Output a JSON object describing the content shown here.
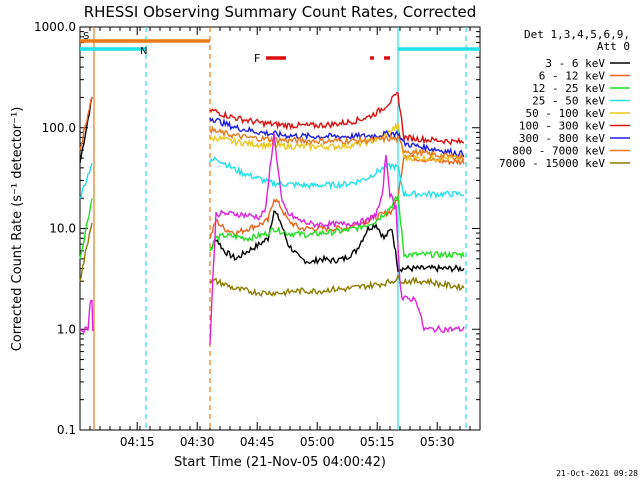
{
  "chart_data": {
    "type": "line",
    "title": "RHESSI Observing Summary Count Rates, Corrected",
    "xlabel": "Start Time (21-Nov-05 04:00:42)",
    "ylabel": "Corrected Count Rate (s⁻¹ detector⁻¹)",
    "y_scale": "log",
    "ylim": [
      0.1,
      1000.0
    ],
    "y_ticks": [
      "1000.0",
      "100.0",
      "10.0",
      "1.0",
      "0.1"
    ],
    "xlim_minutes": [
      0,
      100
    ],
    "x_ticks": [
      {
        "label": "04:15",
        "t": 14.3
      },
      {
        "label": "04:30",
        "t": 29.3
      },
      {
        "label": "04:45",
        "t": 44.3
      },
      {
        "label": "05:00",
        "t": 59.3
      },
      {
        "label": "05:15",
        "t": 74.3
      },
      {
        "label": "05:30",
        "t": 89.3
      }
    ],
    "grid": false,
    "legend_position": "right",
    "legend_header": [
      "Det 1,3,4,5,6,9,",
      "Att 0"
    ],
    "footer_date": "21-Oct-2021 09:28",
    "attenuator_marks": [
      {
        "label": "S",
        "t_start": 0,
        "t_end": 32.5,
        "color": "#e87a1e"
      },
      {
        "label": "N",
        "t_start": 0,
        "t_end": 16.5,
        "color": "#22e0e8"
      },
      {
        "label": "",
        "t_start": 79.5,
        "t_end": 100,
        "color": "#22e0e8"
      }
    ],
    "flare_flag": {
      "label": "F",
      "color": "#dd1010",
      "segments": [
        [
          46.5,
          51.5
        ],
        [
          72.5,
          73.5
        ],
        [
          76,
          77.5
        ]
      ]
    },
    "vertical_lines": [
      {
        "t": 3.5,
        "color": "#e87a1e",
        "style": "solid"
      },
      {
        "t": 16.5,
        "color": "#22e0e8",
        "style": "dashed"
      },
      {
        "t": 32.5,
        "color": "#e87a1e",
        "style": "dashed"
      },
      {
        "t": 79.5,
        "color": "#22e0e8",
        "style": "solid"
      },
      {
        "t": 96.5,
        "color": "#22e0e8",
        "style": "dashed"
      }
    ],
    "series": [
      {
        "name": "3 - 6 keV",
        "color": "#000000",
        "points": [
          [
            0,
            45
          ],
          [
            3,
            200
          ],
          [
            32.5,
            6
          ],
          [
            34,
            8
          ],
          [
            36,
            6
          ],
          [
            39,
            5
          ],
          [
            42,
            6
          ],
          [
            45,
            7
          ],
          [
            47,
            8
          ],
          [
            48.5,
            15
          ],
          [
            50,
            12
          ],
          [
            52,
            7
          ],
          [
            55,
            5
          ],
          [
            58,
            4.6
          ],
          [
            60,
            5
          ],
          [
            63,
            4.8
          ],
          [
            66,
            5
          ],
          [
            69,
            6
          ],
          [
            72,
            10
          ],
          [
            74,
            11
          ],
          [
            76,
            8
          ],
          [
            78,
            10
          ],
          [
            79.5,
            4
          ],
          [
            81,
            4
          ],
          [
            84,
            4
          ],
          [
            87,
            4
          ],
          [
            90,
            4
          ],
          [
            93,
            4
          ],
          [
            96,
            4
          ]
        ]
      },
      {
        "name": "6 - 12 keV",
        "color": "#e8641e",
        "points": [
          [
            0,
            60
          ],
          [
            3,
            210
          ],
          [
            32.5,
            8
          ],
          [
            34,
            12
          ],
          [
            36,
            10
          ],
          [
            39,
            9
          ],
          [
            42,
            10
          ],
          [
            45,
            11
          ],
          [
            47,
            12
          ],
          [
            48.5,
            20
          ],
          [
            50,
            17
          ],
          [
            52,
            12
          ],
          [
            55,
            10
          ],
          [
            58,
            10
          ],
          [
            60,
            10
          ],
          [
            63,
            10
          ],
          [
            66,
            10
          ],
          [
            69,
            11
          ],
          [
            72,
            12
          ],
          [
            74,
            13
          ],
          [
            76,
            14
          ],
          [
            78,
            15
          ],
          [
            79.5,
            20
          ],
          [
            81,
            55
          ],
          [
            84,
            50
          ],
          [
            87,
            48
          ],
          [
            90,
            47
          ],
          [
            93,
            46
          ],
          [
            96,
            46
          ]
        ]
      },
      {
        "name": "12 - 25 keV",
        "color": "#22dd22",
        "points": [
          [
            0,
            5
          ],
          [
            3,
            20
          ],
          [
            32.5,
            6
          ],
          [
            34,
            8
          ],
          [
            36,
            8.5
          ],
          [
            39,
            8.3
          ],
          [
            42,
            8
          ],
          [
            45,
            8.5
          ],
          [
            47,
            9
          ],
          [
            48.5,
            10
          ],
          [
            50,
            9.5
          ],
          [
            52,
            9
          ],
          [
            55,
            8.8
          ],
          [
            58,
            8.6
          ],
          [
            60,
            9
          ],
          [
            63,
            9.2
          ],
          [
            66,
            9.5
          ],
          [
            69,
            10
          ],
          [
            72,
            11
          ],
          [
            74,
            12
          ],
          [
            76,
            14
          ],
          [
            78,
            17
          ],
          [
            79.5,
            21
          ],
          [
            81,
            5.5
          ],
          [
            84,
            5.5
          ],
          [
            87,
            5.5
          ],
          [
            90,
            5.5
          ],
          [
            93,
            5.5
          ],
          [
            96,
            5.5
          ]
        ]
      },
      {
        "name": "25 - 50 keV",
        "color": "#22e0e8",
        "points": [
          [
            0,
            20
          ],
          [
            3,
            45
          ],
          [
            32.5,
            45
          ],
          [
            34,
            50
          ],
          [
            36,
            45
          ],
          [
            39,
            38
          ],
          [
            42,
            34
          ],
          [
            45,
            31
          ],
          [
            47,
            29
          ],
          [
            48.5,
            28
          ],
          [
            50,
            28
          ],
          [
            52,
            27.5
          ],
          [
            55,
            27
          ],
          [
            58,
            26.5
          ],
          [
            60,
            27
          ],
          [
            63,
            27
          ],
          [
            66,
            27.5
          ],
          [
            69,
            29
          ],
          [
            72,
            32
          ],
          [
            74,
            36
          ],
          [
            76,
            40
          ],
          [
            78,
            42
          ],
          [
            79.5,
            40
          ],
          [
            81,
            22
          ],
          [
            84,
            22
          ],
          [
            87,
            22
          ],
          [
            90,
            22
          ],
          [
            93,
            22
          ],
          [
            96,
            22
          ]
        ]
      },
      {
        "name": "50 - 100 keV",
        "color": "#e8c81e",
        "points": [
          [
            32.5,
            75
          ],
          [
            34,
            80
          ],
          [
            36,
            76
          ],
          [
            39,
            72
          ],
          [
            42,
            70
          ],
          [
            45,
            68
          ],
          [
            47,
            67
          ],
          [
            48.5,
            67
          ],
          [
            50,
            66
          ],
          [
            52,
            65.5
          ],
          [
            55,
            65
          ],
          [
            58,
            65
          ],
          [
            60,
            65
          ],
          [
            63,
            65
          ],
          [
            66,
            66
          ],
          [
            69,
            68
          ],
          [
            72,
            72
          ],
          [
            74,
            76
          ],
          [
            76,
            82
          ],
          [
            78,
            95
          ],
          [
            79.5,
            105
          ],
          [
            81,
            50
          ],
          [
            84,
            50
          ],
          [
            87,
            50
          ],
          [
            90,
            50
          ],
          [
            93,
            50
          ],
          [
            96,
            50
          ]
        ]
      },
      {
        "name": "100 - 300 keV",
        "color": "#dd1010",
        "points": [
          [
            32.5,
            150
          ],
          [
            34,
            145
          ],
          [
            36,
            135
          ],
          [
            39,
            125
          ],
          [
            42,
            118
          ],
          [
            45,
            112
          ],
          [
            47,
            110
          ],
          [
            48.5,
            108
          ],
          [
            50,
            107
          ],
          [
            52,
            106
          ],
          [
            55,
            105
          ],
          [
            58,
            105
          ],
          [
            60,
            106
          ],
          [
            63,
            108
          ],
          [
            66,
            112
          ],
          [
            69,
            118
          ],
          [
            72,
            128
          ],
          [
            74,
            140
          ],
          [
            76,
            160
          ],
          [
            78,
            190
          ],
          [
            79.5,
            215
          ],
          [
            81,
            80
          ],
          [
            84,
            78
          ],
          [
            87,
            76
          ],
          [
            90,
            75
          ],
          [
            93,
            73
          ],
          [
            96,
            72
          ]
        ]
      },
      {
        "name": "300 - 800 keV",
        "color": "#1e1ee8",
        "points": [
          [
            32.5,
            125
          ],
          [
            34,
            120
          ],
          [
            36,
            110
          ],
          [
            39,
            100
          ],
          [
            42,
            95
          ],
          [
            45,
            90
          ],
          [
            47,
            88
          ],
          [
            48.5,
            87
          ],
          [
            50,
            85
          ],
          [
            52,
            84
          ],
          [
            55,
            83
          ],
          [
            58,
            82
          ],
          [
            60,
            82
          ],
          [
            63,
            82
          ],
          [
            66,
            82
          ],
          [
            69,
            82
          ],
          [
            72,
            83
          ],
          [
            74,
            84
          ],
          [
            76,
            86
          ],
          [
            78,
            88
          ],
          [
            79.5,
            88
          ],
          [
            81,
            70
          ],
          [
            84,
            66
          ],
          [
            87,
            63
          ],
          [
            90,
            60
          ],
          [
            93,
            57
          ],
          [
            96,
            55
          ]
        ]
      },
      {
        "name": "800 - 7000 keV",
        "color": "#e87a1e",
        "points": [
          [
            32.5,
            95
          ],
          [
            34,
            92
          ],
          [
            36,
            88
          ],
          [
            39,
            83
          ],
          [
            42,
            80
          ],
          [
            45,
            78
          ],
          [
            47,
            77
          ],
          [
            48.5,
            76
          ],
          [
            50,
            75.5
          ],
          [
            52,
            75
          ],
          [
            55,
            74.5
          ],
          [
            58,
            74
          ],
          [
            60,
            74
          ],
          [
            63,
            74
          ],
          [
            66,
            74
          ],
          [
            69,
            74.5
          ],
          [
            72,
            75
          ],
          [
            74,
            76
          ],
          [
            76,
            77
          ],
          [
            78,
            78
          ],
          [
            79.5,
            77
          ],
          [
            81,
            60
          ],
          [
            84,
            57
          ],
          [
            87,
            55
          ],
          [
            90,
            53
          ],
          [
            93,
            52
          ],
          [
            96,
            51
          ]
        ]
      },
      {
        "name": "7000 - 15000 keV",
        "color": "#8b7d00",
        "points": [
          [
            0,
            3
          ],
          [
            3,
            12
          ],
          [
            32.5,
            3
          ],
          [
            34,
            3
          ],
          [
            36,
            2.8
          ],
          [
            39,
            2.5
          ],
          [
            42,
            2.4
          ],
          [
            45,
            2.3
          ],
          [
            48,
            2.3
          ],
          [
            51,
            2.3
          ],
          [
            54,
            2.4
          ],
          [
            57,
            2.4
          ],
          [
            60,
            2.4
          ],
          [
            63,
            2.5
          ],
          [
            66,
            2.5
          ],
          [
            69,
            2.6
          ],
          [
            72,
            2.7
          ],
          [
            75,
            2.8
          ],
          [
            78,
            3
          ],
          [
            79.5,
            3.2
          ],
          [
            81,
            3
          ],
          [
            84,
            3
          ],
          [
            87,
            3
          ],
          [
            90,
            2.8
          ],
          [
            93,
            2.7
          ],
          [
            96,
            2.6
          ]
        ]
      },
      {
        "name": "",
        "color": "#dd22dd",
        "points": [
          [
            0,
            1
          ],
          [
            2,
            1
          ],
          [
            2.5,
            1.9
          ],
          [
            3,
            1.9
          ],
          [
            3.2,
            1
          ],
          [
            32.5,
            0.7
          ],
          [
            33,
            2
          ],
          [
            34,
            14
          ],
          [
            36,
            14
          ],
          [
            39,
            14
          ],
          [
            42,
            13.5
          ],
          [
            45,
            13
          ],
          [
            46.5,
            16
          ],
          [
            47.5,
            40
          ],
          [
            48.5,
            85
          ],
          [
            49.5,
            40
          ],
          [
            50.5,
            18
          ],
          [
            52,
            14
          ],
          [
            55,
            12
          ],
          [
            58,
            11
          ],
          [
            60,
            11
          ],
          [
            63,
            11
          ],
          [
            66,
            11
          ],
          [
            69,
            11.5
          ],
          [
            72,
            12
          ],
          [
            74,
            14
          ],
          [
            75.5,
            20
          ],
          [
            76.5,
            55
          ],
          [
            77.5,
            22
          ],
          [
            79,
            16
          ],
          [
            80,
            3
          ],
          [
            80.5,
            2
          ],
          [
            81,
            2
          ],
          [
            82,
            2
          ],
          [
            83,
            2
          ],
          [
            84,
            2
          ],
          [
            86,
            1
          ],
          [
            90,
            1
          ],
          [
            93,
            1
          ],
          [
            96,
            1
          ]
        ]
      }
    ]
  }
}
